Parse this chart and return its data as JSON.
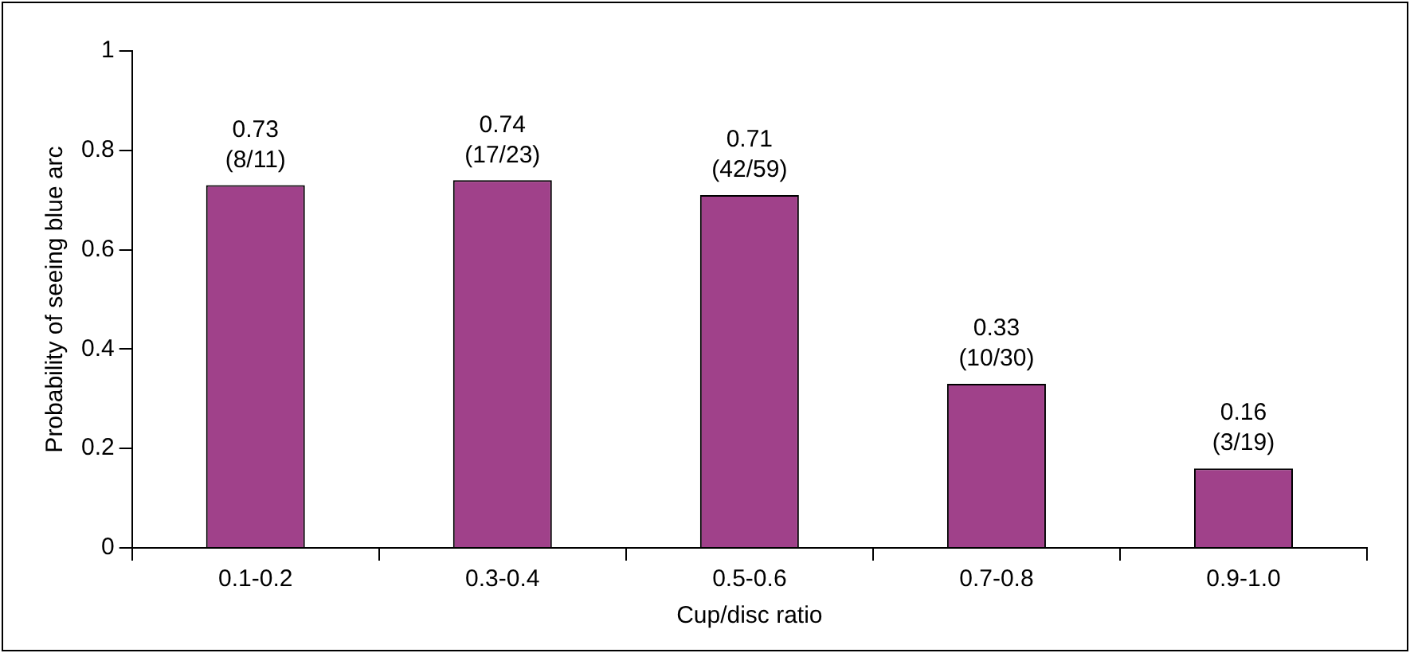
{
  "chart_data": {
    "type": "bar",
    "xlabel": "Cup/disc ratio",
    "ylabel": "Probability of seeing blue arc",
    "categories": [
      "0.1-0.2",
      "0.3-0.4",
      "0.5-0.6",
      "0.7-0.8",
      "0.9-1.0"
    ],
    "values": [
      0.73,
      0.74,
      0.71,
      0.33,
      0.16
    ],
    "value_labels": [
      "0.73\n(8/11)",
      "0.74\n(17/23)",
      "0.71\n(42/59)",
      "0.33\n(10/30)",
      "0.16\n(3/19)"
    ],
    "color": "#a0418a",
    "ylim": [
      0,
      1
    ],
    "yticks": [
      0,
      0.2,
      0.4,
      0.6,
      0.8,
      1
    ],
    "grid": false,
    "legend": false
  }
}
